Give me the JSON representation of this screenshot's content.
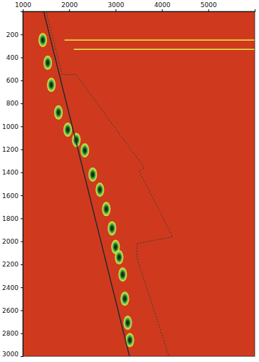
{
  "chart_data": {
    "type": "scatter",
    "color": "#cf3a1e",
    "xlim": [
      1000,
      6000
    ],
    "xticks": [
      1000,
      2000,
      3000,
      4000,
      5000
    ],
    "ylim": [
      0,
      3000
    ],
    "yticks": [
      200,
      400,
      600,
      800,
      1000,
      1200,
      1400,
      1600,
      1800,
      2000,
      2200,
      2400,
      2600,
      2800,
      3000
    ],
    "series": [
      {
        "type": "scatter",
        "color": "#f2ee3c",
        "marker": "ellipse",
        "x": [
          1431,
          1538,
          1615,
          1769,
          1969,
          2154,
          2338,
          2508,
          2662,
          2800,
          2923,
          3000,
          3077,
          3154,
          3200,
          3262,
          3308
        ],
        "values": [
          249,
          447,
          639,
          879,
          1029,
          1119,
          1209,
          1419,
          1551,
          1719,
          1887,
          2049,
          2139,
          2289,
          2499,
          2709,
          2859
        ]
      },
      {
        "type": "line",
        "color": "#2a2a2a",
        "line_style": "solid",
        "x": [
          1450,
          3300
        ],
        "values": [
          0,
          3000
        ]
      },
      {
        "type": "line",
        "color": "#3a3a3a",
        "line_style": "dotted",
        "x": [
          1510,
          1850,
          2150,
          3620,
          3510,
          4230,
          3460,
          3460,
          4150
        ],
        "values": [
          10,
          550,
          550,
          1360,
          1390,
          1960,
          2020,
          2140,
          3000
        ]
      },
      {
        "type": "line",
        "color": "#f2e84a",
        "line_style": "solid",
        "x": [
          1900,
          6000
        ],
        "values": [
          250,
          250
        ]
      },
      {
        "type": "line",
        "color": "#f2e84a",
        "line_style": "solid",
        "x": [
          2100,
          6000
        ],
        "values": [
          330,
          330
        ]
      }
    ]
  }
}
